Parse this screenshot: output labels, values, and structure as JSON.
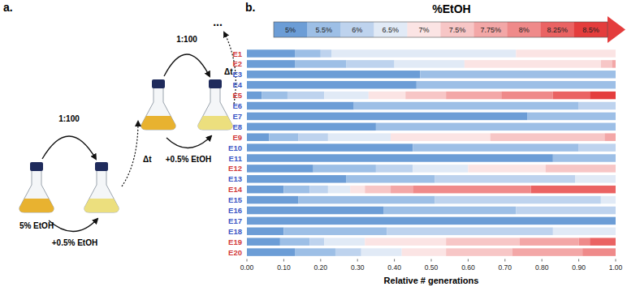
{
  "chart_data": {
    "type": "bar",
    "orientation": "horizontal",
    "stacked": true,
    "legend": "top",
    "title": "%EtOH",
    "xlabel": "Relative # generations",
    "categories": [
      "E1",
      "E2",
      "E3",
      "E4",
      "E5",
      "E6",
      "E7",
      "E8",
      "E9",
      "E10",
      "E11",
      "E12",
      "E13",
      "E14",
      "E15",
      "E16",
      "E17",
      "E18",
      "E19",
      "E20"
    ],
    "series": [
      {
        "name": "5%",
        "color": "#6c9dd6",
        "values": [
          0.13,
          0.13,
          0.47,
          0.46,
          0.04,
          0.29,
          0.76,
          0.35,
          0.06,
          0.45,
          0.83,
          0.18,
          0.27,
          0.1,
          0.14,
          0.37,
          1.0,
          0.1,
          0.09,
          0.13
        ]
      },
      {
        "name": "5.5%",
        "color": "#9dbfe6",
        "values": [
          0.07,
          0.14,
          0.53,
          0.54,
          0.07,
          0.61,
          0.24,
          0.65,
          0.08,
          0.45,
          0.17,
          0.17,
          0.24,
          0.07,
          0.37,
          0.36,
          0,
          0.28,
          0.08,
          0.11
        ]
      },
      {
        "name": "6%",
        "color": "#bed3ee",
        "values": [
          0.03,
          0.13,
          0,
          0,
          0.1,
          0.1,
          0,
          0,
          0.08,
          0.1,
          0,
          0.1,
          0.38,
          0.05,
          0.45,
          0.27,
          0,
          0.45,
          0.04,
          0.07
        ]
      },
      {
        "name": "6.5%",
        "color": "#e1eaf6",
        "values": [
          0.5,
          0.19,
          0,
          0,
          0.12,
          0,
          0,
          0,
          0.17,
          0,
          0,
          0.15,
          0.11,
          0.06,
          0.04,
          0,
          0,
          0.17,
          0.11,
          0.11
        ]
      },
      {
        "name": "7%",
        "color": "#fbe4e4",
        "values": [
          0.27,
          0.37,
          0,
          0,
          0.1,
          0,
          0,
          0,
          0.27,
          0,
          0,
          0.21,
          0,
          0.04,
          0,
          0,
          0,
          0,
          0.22,
          0.12
        ]
      },
      {
        "name": "7.5%",
        "color": "#f7c6c6",
        "values": [
          0,
          0.03,
          0,
          0,
          0.11,
          0,
          0,
          0,
          0.31,
          0,
          0,
          0.19,
          0,
          0.07,
          0,
          0,
          0,
          0,
          0.2,
          0.18
        ]
      },
      {
        "name": "7.75%",
        "color": "#f3a7a7",
        "values": [
          0,
          0.01,
          0,
          0,
          0.15,
          0,
          0,
          0,
          0.03,
          0,
          0,
          0,
          0,
          0.06,
          0,
          0,
          0,
          0,
          0.16,
          0.19
        ]
      },
      {
        "name": "8%",
        "color": "#ef8a8a",
        "values": [
          0,
          0,
          0,
          0,
          0.14,
          0,
          0,
          0,
          0,
          0,
          0,
          0,
          0,
          0.32,
          0,
          0,
          0,
          0,
          0.03,
          0.09
        ]
      },
      {
        "name": "8.25%",
        "color": "#ea6363",
        "values": [
          0,
          0,
          0,
          0,
          0.1,
          0,
          0,
          0,
          0,
          0,
          0,
          0,
          0,
          0.23,
          0,
          0,
          0,
          0,
          0.07,
          0
        ]
      },
      {
        "name": "8.5%",
        "color": "#e43d3d",
        "values": [
          0,
          0,
          0,
          0,
          0.07,
          0,
          0,
          0,
          0,
          0,
          0,
          0,
          0,
          0,
          0,
          0,
          0,
          0,
          0,
          0
        ]
      }
    ],
    "xlim": [
      0,
      1
    ],
    "xticks": [
      {
        "value": 0,
        "label": "0.00"
      },
      {
        "value": 0.1,
        "label": "0.10"
      },
      {
        "value": 0.2,
        "label": "0.20"
      },
      {
        "value": 0.3,
        "label": "0.30"
      },
      {
        "value": 0.4,
        "label": "0.40"
      },
      {
        "value": 0.5,
        "label": "0.50"
      },
      {
        "value": 0.6,
        "label": "0.60"
      },
      {
        "value": 0.7,
        "label": "0.70"
      },
      {
        "value": 0.8,
        "label": "0.80"
      },
      {
        "value": 0.9,
        "label": "0.90"
      },
      {
        "value": 1,
        "label": "1.00"
      }
    ],
    "grid": false
  },
  "diagram": {
    "panel_labels": [
      "a.",
      "b."
    ],
    "start_label": "5% EtOH",
    "dilution": "1:100",
    "step": "+0.5% EtOH",
    "interval": "Δt",
    "continuation": "..."
  }
}
